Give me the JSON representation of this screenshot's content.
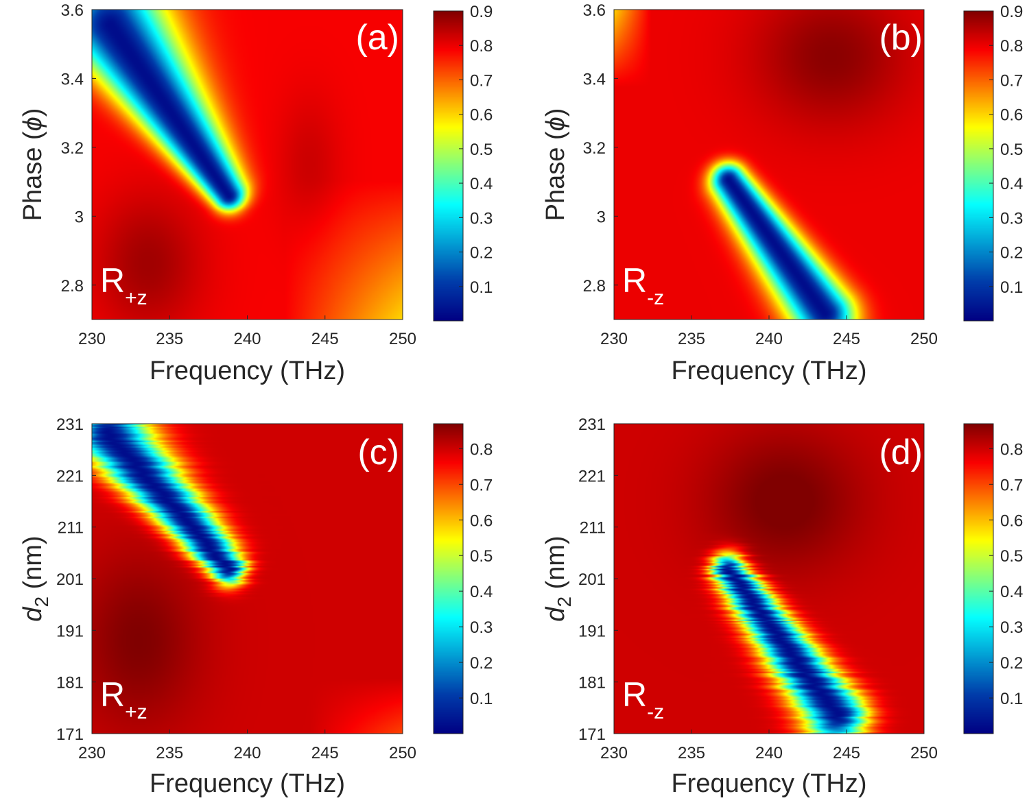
{
  "chart_data": [
    {
      "type": "heatmap",
      "panel": "(a)",
      "inset_main": "R",
      "inset_sub": "+z",
      "xlabel": "Frequency (THz)",
      "ylabel_main": "Phase (",
      "ylabel_symbol": "ϕ",
      "ylabel_end": ")",
      "xlim": [
        230,
        250
      ],
      "ylim": [
        2.7,
        3.6
      ],
      "xticks": [
        "230",
        "235",
        "240",
        "245",
        "250"
      ],
      "yticks": [
        "2.8",
        "3",
        "3.2",
        "3.4",
        "3.6"
      ],
      "colorbar": {
        "min": 0,
        "max": 0.9,
        "ticks": [
          "0.1",
          "0.2",
          "0.3",
          "0.4",
          "0.5",
          "0.6",
          "0.7",
          "0.8",
          "0.9"
        ]
      },
      "feature": "low-reflectance band (min ~0.02) from (231, 3.55) to (239, 3.05)"
    },
    {
      "type": "heatmap",
      "panel": "(b)",
      "inset_main": "R",
      "inset_sub": "-z",
      "xlabel": "Frequency (THz)",
      "ylabel_main": "Phase (",
      "ylabel_symbol": "ϕ",
      "ylabel_end": ")",
      "xlim": [
        230,
        250
      ],
      "ylim": [
        2.7,
        3.6
      ],
      "xticks": [
        "230",
        "235",
        "240",
        "245",
        "250"
      ],
      "yticks": [
        "2.8",
        "3",
        "3.2",
        "3.4",
        "3.6"
      ],
      "colorbar": {
        "min": 0,
        "max": 0.9,
        "ticks": [
          "0.1",
          "0.2",
          "0.3",
          "0.4",
          "0.5",
          "0.6",
          "0.7",
          "0.8",
          "0.9"
        ]
      },
      "feature": "low-reflectance band (min ~0.02) from (237.5, 3.1) to (243, 2.75)"
    },
    {
      "type": "heatmap",
      "panel": "(c)",
      "inset_main": "R",
      "inset_sub": "+z",
      "xlabel": "Frequency (THz)",
      "ylabel_main": "d",
      "ylabel_sub": "2",
      "ylabel_end": " (nm)",
      "xlim": [
        230,
        250
      ],
      "ylim": [
        171,
        231
      ],
      "xticks": [
        "230",
        "235",
        "240",
        "245",
        "250"
      ],
      "yticks": [
        "171",
        "181",
        "191",
        "201",
        "211",
        "221",
        "231"
      ],
      "colorbar": {
        "min": 0,
        "max": 0.87,
        "ticks": [
          "0.1",
          "0.2",
          "0.3",
          "0.4",
          "0.5",
          "0.6",
          "0.7",
          "0.8"
        ]
      },
      "feature": "low-reflectance band (min ~0.02) from (231, 229) to (239, 203)"
    },
    {
      "type": "heatmap",
      "panel": "(d)",
      "inset_main": "R",
      "inset_sub": "-z",
      "xlabel": "Frequency (THz)",
      "ylabel_main": "d",
      "ylabel_sub": "2",
      "ylabel_end": " (nm)",
      "xlim": [
        230,
        250
      ],
      "ylim": [
        171,
        231
      ],
      "xticks": [
        "230",
        "235",
        "240",
        "245",
        "250"
      ],
      "yticks": [
        "171",
        "181",
        "191",
        "201",
        "211",
        "221",
        "231"
      ],
      "colorbar": {
        "min": 0,
        "max": 0.87,
        "ticks": [
          "0.1",
          "0.2",
          "0.3",
          "0.4",
          "0.5",
          "0.6",
          "0.7",
          "0.8"
        ]
      },
      "feature": "low-reflectance band (min ~0.02) from (237.5, 201) to (243, 175)"
    }
  ]
}
